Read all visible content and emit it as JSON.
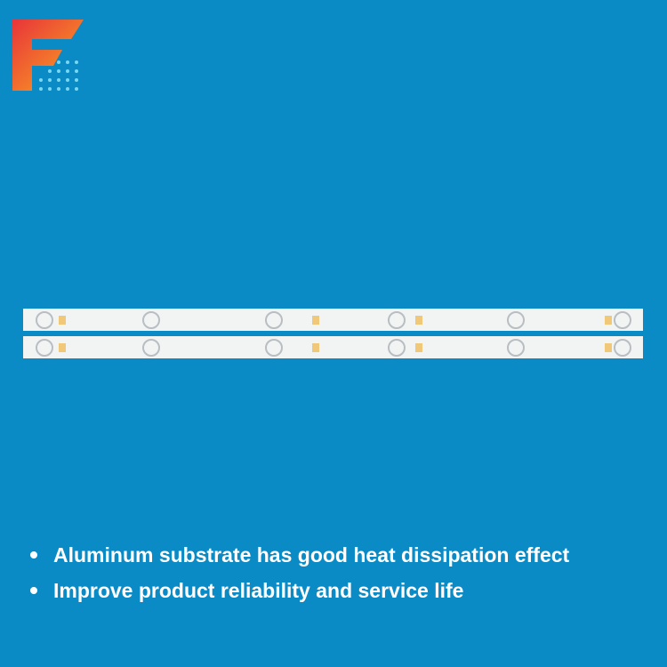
{
  "bullets": [
    "Aluminum substrate has good heat dissipation effect",
    "Improve product reliability and service life"
  ]
}
